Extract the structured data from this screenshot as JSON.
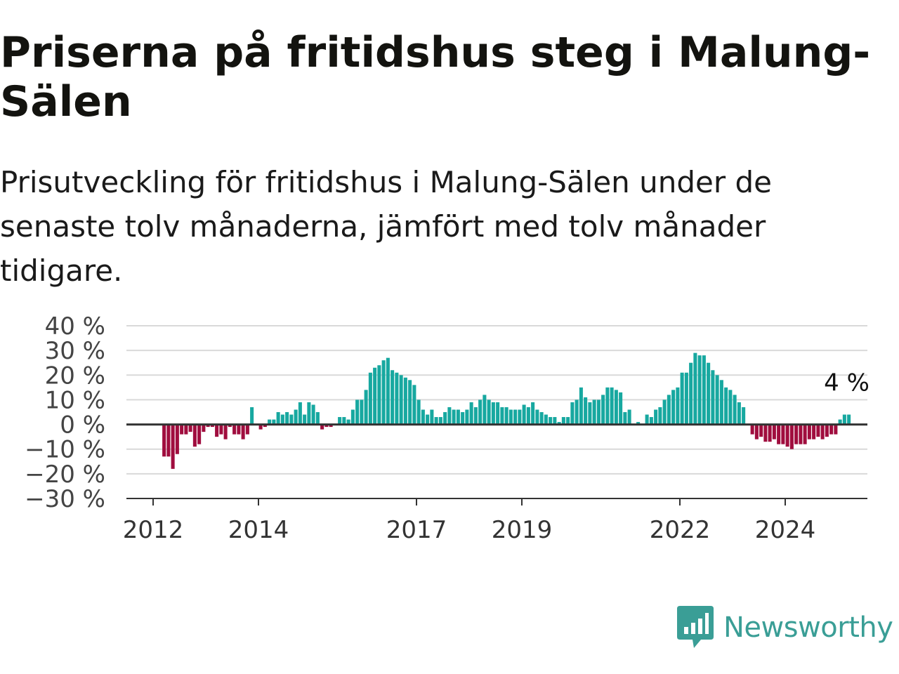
{
  "title": "Priserna på fritidshus steg i Malung-Sälen",
  "subtitle": "Prisutveckling för fritidshus i Malung-Sälen under de senaste tolv månaderna, jämfört med tolv månader tidigare.",
  "brand": {
    "name": "Newsworthy",
    "icon": "newsworthy-logo-icon",
    "color": "#3a9e96"
  },
  "colors": {
    "positive": "#17a8a0",
    "negative": "#a00d3e",
    "grid": "#d9d9d9",
    "zero_line": "#333333"
  },
  "chart_data": {
    "type": "bar",
    "title": "Priserna på fritidshus steg i Malung-Sälen",
    "xlabel": "",
    "ylabel": "",
    "ylim": [
      -30,
      40
    ],
    "y_ticks": [
      -30,
      -20,
      -10,
      0,
      10,
      20,
      30,
      40
    ],
    "y_tick_labels": [
      "−30 %",
      "−20 %",
      "−10 %",
      "0 %",
      "10 %",
      "20 %",
      "30 %",
      "40 %"
    ],
    "x_ticks": [
      2012,
      2014,
      2017,
      2019,
      2022,
      2024
    ],
    "x_tick_labels": [
      "2012",
      "2014",
      "2017",
      "2019",
      "2022",
      "2024"
    ],
    "grid": true,
    "last_value_label": "4 %",
    "period_start": "2012-01",
    "period_end": "2025-02",
    "monthly_values": [
      0,
      0,
      -13,
      -13,
      -18,
      -12,
      -4,
      -4,
      -3,
      -9,
      -8,
      -3,
      -1,
      -1,
      -5,
      -4,
      -6,
      -1,
      -4,
      -4,
      -6,
      -4,
      7,
      0,
      -2,
      -1,
      2,
      2,
      5,
      4,
      5,
      4,
      6,
      9,
      4,
      9,
      8,
      5,
      -2,
      -1,
      -1,
      0,
      3,
      3,
      2,
      6,
      10,
      10,
      14,
      21,
      23,
      24,
      26,
      27,
      22,
      21,
      20,
      19,
      18,
      16,
      10,
      6,
      4,
      6,
      3,
      3,
      5,
      7,
      6,
      6,
      5,
      6,
      9,
      7,
      10,
      12,
      10,
      9,
      9,
      7,
      7,
      6,
      6,
      6,
      8,
      7,
      9,
      6,
      5,
      4,
      3,
      3,
      1,
      3,
      3,
      9,
      10,
      15,
      11,
      9,
      10,
      10,
      12,
      15,
      15,
      14,
      13,
      5,
      6,
      0,
      1,
      0,
      4,
      3,
      6,
      7,
      10,
      12,
      14,
      15,
      21,
      21,
      25,
      29,
      28,
      28,
      25,
      22,
      20,
      18,
      15,
      14,
      12,
      9,
      7,
      0,
      -4,
      -6,
      -5,
      -7,
      -7,
      -6,
      -8,
      -8,
      -9,
      -10,
      -8,
      -8,
      -8,
      -6,
      -6,
      -5,
      -6,
      -5,
      -4,
      -4,
      2,
      4,
      4
    ]
  }
}
